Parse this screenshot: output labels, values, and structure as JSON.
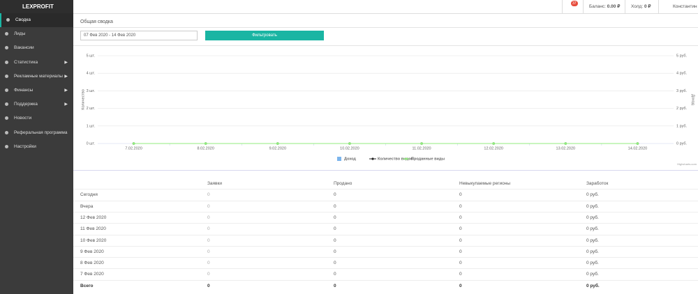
{
  "logo": "LEXPROFIT",
  "menu": [
    "Сводка",
    "Лиды",
    "Вакансии",
    "Статистика",
    "Рекламные материалы",
    "Финансы",
    "Поддержка",
    "Новости",
    "Реферальная программа",
    "Настройки"
  ],
  "header": {
    "badge": "37",
    "balance_label": "Баланс:",
    "balance": "0.00 ₽",
    "hold_label": "Холд:",
    "hold": "0 ₽",
    "user": "Константин"
  },
  "page_title": "Общая сводка",
  "filter": {
    "date_range": "07 Фев 2020 - 14 Фев 2020",
    "button": "Фильтровать"
  },
  "chart_data": {
    "type": "line",
    "categories": [
      "7.02.2020",
      "8.02.2020",
      "9.02.2020",
      "10.02.2020",
      "11.02.2020",
      "12.02.2020",
      "13.02.2020",
      "14.02.2020"
    ],
    "series": [
      {
        "name": "Доход",
        "color": "#7cb5ec",
        "type": "bar",
        "axis": "y2",
        "values": [
          0,
          0,
          0,
          0,
          0,
          0,
          0,
          0
        ]
      },
      {
        "name": "Количество видов",
        "color": "#222222",
        "values": [
          0,
          0,
          0,
          0,
          0,
          0,
          0,
          0
        ]
      },
      {
        "name": "Проданные виды",
        "color": "#90ed7d",
        "values": [
          0,
          0,
          0,
          0,
          0,
          0,
          0,
          0
        ]
      }
    ],
    "ylabel": "Количество",
    "y2label": "Доход",
    "ylim": [
      0,
      5
    ],
    "yticks": [
      {
        "value": 0,
        "label": "0 шт."
      },
      {
        "value": 1,
        "label": "1 шт."
      },
      {
        "value": 2,
        "label": "2 шт."
      },
      {
        "value": 3,
        "label": "3 шт."
      },
      {
        "value": 4,
        "label": "4 шт."
      },
      {
        "value": 5,
        "label": "5 шт."
      }
    ],
    "y2lim": [
      0,
      5
    ],
    "y2ticks": [
      {
        "value": 0,
        "label": "0 руб."
      },
      {
        "value": 1,
        "label": "1 руб."
      },
      {
        "value": 2,
        "label": "2 руб."
      },
      {
        "value": 3,
        "label": "3 руб."
      },
      {
        "value": 4,
        "label": "4 руб."
      },
      {
        "value": 5,
        "label": "5 руб."
      }
    ],
    "grid": true,
    "legend": "bottom",
    "credit": "Highcharts.com"
  },
  "table": {
    "columns": [
      "Заявки",
      "Продано",
      "Невыкупаемые регионы",
      "Заработок"
    ],
    "rows": [
      [
        "Сегодня",
        "0",
        "0",
        "0",
        "0 руб."
      ],
      [
        "Вчера",
        "0",
        "0",
        "0",
        "0 руб."
      ],
      [
        "12 Фев 2020",
        "0",
        "0",
        "0",
        "0 руб."
      ],
      [
        "11 Фев 2020",
        "0",
        "0",
        "0",
        "0 руб."
      ],
      [
        "10 Фев 2020",
        "0",
        "0",
        "0",
        "0 руб."
      ],
      [
        "9 Фев 2020",
        "0",
        "0",
        "0",
        "0 руб."
      ],
      [
        "8 Фев 2020",
        "0",
        "0",
        "0",
        "0 руб."
      ],
      [
        "7 Фев 2020",
        "0",
        "0",
        "0",
        "0 руб."
      ]
    ],
    "total": [
      "Всего",
      "0",
      "0",
      "0",
      "0 руб."
    ]
  }
}
